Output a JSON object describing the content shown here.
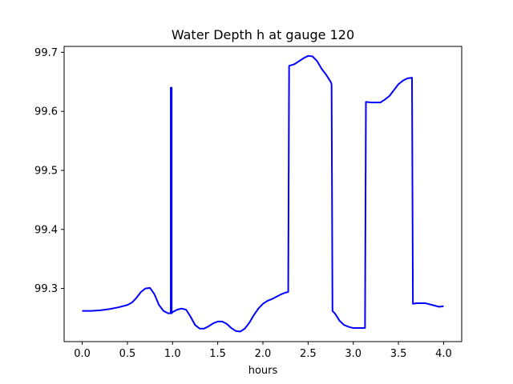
{
  "chart_data": {
    "type": "line",
    "title": "Water Depth h at gauge 120",
    "xlabel": "hours",
    "ylabel": "",
    "xlim": [
      -0.2,
      4.2
    ],
    "ylim": [
      99.21,
      99.71
    ],
    "x_ticks": [
      0.0,
      0.5,
      1.0,
      1.5,
      2.0,
      2.5,
      3.0,
      3.5,
      4.0
    ],
    "x_tick_labels": [
      "0.0",
      "0.5",
      "1.0",
      "1.5",
      "2.0",
      "2.5",
      "3.0",
      "3.5",
      "4.0"
    ],
    "y_ticks": [
      99.3,
      99.4,
      99.5,
      99.6,
      99.7
    ],
    "y_tick_labels": [
      "99.3",
      "99.4",
      "99.5",
      "99.6",
      "99.7"
    ],
    "grid": false,
    "color": "#0000ff",
    "series": [
      {
        "x": [
          0.0,
          0.1,
          0.2,
          0.3,
          0.4,
          0.5,
          0.55,
          0.6,
          0.65,
          0.7,
          0.75,
          0.8,
          0.85,
          0.9,
          0.95,
          0.98,
          0.98,
          0.99,
          0.99,
          1.0,
          1.05,
          1.1,
          1.15,
          1.2,
          1.25,
          1.3,
          1.35,
          1.4,
          1.45,
          1.5,
          1.55,
          1.6,
          1.65,
          1.7,
          1.75,
          1.8,
          1.85,
          1.9,
          1.95,
          2.0,
          2.05,
          2.1,
          2.15,
          2.2,
          2.25,
          2.28,
          2.29,
          2.35,
          2.4,
          2.45,
          2.5,
          2.55,
          2.6,
          2.65,
          2.7,
          2.75,
          2.76,
          2.77,
          2.8,
          2.85,
          2.9,
          2.95,
          3.0,
          3.05,
          3.1,
          3.13,
          3.14,
          3.2,
          3.25,
          3.3,
          3.35,
          3.4,
          3.45,
          3.5,
          3.55,
          3.6,
          3.65,
          3.66,
          3.7,
          3.8,
          3.9,
          3.95,
          4.0
        ],
        "y": [
          99.262,
          99.262,
          99.263,
          99.265,
          99.268,
          99.272,
          99.276,
          99.284,
          99.294,
          99.3,
          99.301,
          99.29,
          99.272,
          99.262,
          99.258,
          99.258,
          99.64,
          99.64,
          99.258,
          99.26,
          99.264,
          99.266,
          99.264,
          99.252,
          99.238,
          99.232,
          99.232,
          99.236,
          99.241,
          99.244,
          99.244,
          99.24,
          99.233,
          99.228,
          99.227,
          99.232,
          99.242,
          99.255,
          99.266,
          99.274,
          99.279,
          99.282,
          99.286,
          99.29,
          99.293,
          99.294,
          99.677,
          99.68,
          99.685,
          99.69,
          99.694,
          99.693,
          99.685,
          99.672,
          99.662,
          99.65,
          99.646,
          99.262,
          99.257,
          99.245,
          99.238,
          99.235,
          99.233,
          99.233,
          99.233,
          99.233,
          99.616,
          99.615,
          99.615,
          99.615,
          99.62,
          99.626,
          99.636,
          99.646,
          99.652,
          99.656,
          99.657,
          99.274,
          99.275,
          99.275,
          99.271,
          99.269,
          99.27
        ]
      }
    ]
  }
}
